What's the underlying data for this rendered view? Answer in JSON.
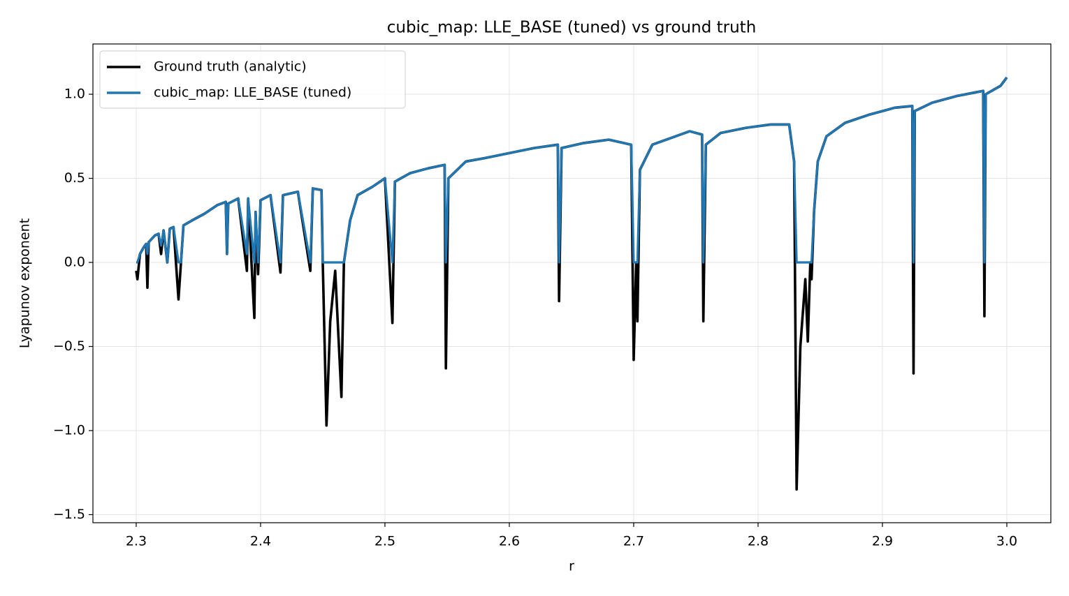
{
  "chart_data": {
    "type": "line",
    "title": "cubic_map: LLE_BASE (tuned) vs ground truth",
    "x_label": "r",
    "y_label": "Lyapunov exponent",
    "x": [
      2.3,
      2.301,
      2.303,
      2.306,
      2.308,
      2.309,
      2.31,
      2.315,
      2.318,
      2.32,
      2.322,
      2.325,
      2.327,
      2.33,
      2.334,
      2.336,
      2.338,
      2.345,
      2.355,
      2.365,
      2.372,
      2.373,
      2.374,
      2.382,
      2.389,
      2.39,
      2.395,
      2.396,
      2.398,
      2.4,
      2.408,
      2.416,
      2.418,
      2.43,
      2.44,
      2.442,
      2.449,
      2.45,
      2.453,
      2.456,
      2.46,
      2.465,
      2.467,
      2.472,
      2.478,
      2.49,
      2.5,
      2.506,
      2.508,
      2.52,
      2.535,
      2.548,
      2.549,
      2.551,
      2.565,
      2.58,
      2.6,
      2.62,
      2.639,
      2.64,
      2.642,
      2.66,
      2.68,
      2.698,
      2.7,
      2.702,
      2.703,
      2.705,
      2.715,
      2.73,
      2.745,
      2.755,
      2.756,
      2.758,
      2.77,
      2.79,
      2.81,
      2.825,
      2.829,
      2.831,
      2.834,
      2.838,
      2.84,
      2.842,
      2.843,
      2.845,
      2.848,
      2.855,
      2.87,
      2.89,
      2.91,
      2.924,
      2.925,
      2.926,
      2.94,
      2.96,
      2.981,
      2.982,
      2.983,
      2.995,
      3.0
    ],
    "series": [
      {
        "name": "Ground truth (analytic)",
        "color": "#000000",
        "values": [
          -0.05,
          -0.1,
          0.05,
          0.09,
          0.11,
          -0.15,
          0.12,
          0.16,
          0.17,
          0.05,
          0.19,
          0.0,
          0.2,
          0.21,
          -0.22,
          0.0,
          0.22,
          0.25,
          0.29,
          0.34,
          0.36,
          0.05,
          0.35,
          0.38,
          -0.05,
          0.38,
          -0.33,
          0.3,
          -0.07,
          0.37,
          0.4,
          -0.06,
          0.4,
          0.42,
          -0.05,
          0.44,
          0.43,
          0.0,
          -0.97,
          -0.35,
          -0.05,
          -0.8,
          0.0,
          0.25,
          0.4,
          0.45,
          0.5,
          -0.36,
          0.48,
          0.53,
          0.56,
          0.58,
          -0.63,
          0.5,
          0.6,
          0.62,
          0.65,
          0.68,
          0.7,
          -0.23,
          0.68,
          0.71,
          0.73,
          0.7,
          -0.58,
          0.0,
          -0.35,
          0.55,
          0.7,
          0.74,
          0.78,
          0.76,
          -0.35,
          0.7,
          0.77,
          0.8,
          0.82,
          0.82,
          0.6,
          -1.35,
          -0.5,
          -0.1,
          -0.47,
          0.0,
          -0.1,
          0.3,
          0.6,
          0.75,
          0.83,
          0.88,
          0.92,
          0.93,
          -0.66,
          0.9,
          0.95,
          0.99,
          1.02,
          -0.32,
          1.0,
          1.05,
          1.1
        ]
      },
      {
        "name": "cubic_map: LLE_BASE (tuned)",
        "color": "#1f77b4",
        "values": [
          0.0,
          0.0,
          0.05,
          0.09,
          0.11,
          0.05,
          0.12,
          0.16,
          0.17,
          0.1,
          0.19,
          0.0,
          0.2,
          0.21,
          0.0,
          0.0,
          0.22,
          0.25,
          0.29,
          0.34,
          0.36,
          0.05,
          0.35,
          0.38,
          0.05,
          0.38,
          0.0,
          0.3,
          0.0,
          0.37,
          0.4,
          0.0,
          0.4,
          0.42,
          0.0,
          0.44,
          0.43,
          0.0,
          0.0,
          0.0,
          0.0,
          0.0,
          0.0,
          0.25,
          0.4,
          0.45,
          0.5,
          0.0,
          0.48,
          0.53,
          0.56,
          0.58,
          0.0,
          0.5,
          0.6,
          0.62,
          0.65,
          0.68,
          0.7,
          0.0,
          0.68,
          0.71,
          0.73,
          0.7,
          0.0,
          0.0,
          0.0,
          0.55,
          0.7,
          0.74,
          0.78,
          0.76,
          0.0,
          0.7,
          0.77,
          0.8,
          0.82,
          0.82,
          0.6,
          0.0,
          0.0,
          0.0,
          0.0,
          0.0,
          0.0,
          0.3,
          0.6,
          0.75,
          0.83,
          0.88,
          0.92,
          0.93,
          0.0,
          0.9,
          0.95,
          0.99,
          1.02,
          0.0,
          1.0,
          1.05,
          1.1
        ]
      }
    ],
    "xlim": [
      2.2652,
      3.0354
    ],
    "xticks": [
      2.3,
      2.4,
      2.5,
      2.6,
      2.7,
      2.8,
      2.9,
      {
        "value": 3.0,
        "label": "3.0"
      }
    ],
    "ylim": [
      -1.548,
      1.299
    ],
    "yticks": [
      {
        "value": -1.5,
        "label": "−1.5"
      },
      {
        "value": -1.0,
        "label": "−1.0"
      },
      {
        "value": -0.5,
        "label": "−0.5"
      },
      {
        "value": 0.0,
        "label": "0.0"
      },
      0.5,
      {
        "value": 1.0,
        "label": "1.0"
      }
    ],
    "grid": true,
    "legend": "upper left"
  }
}
